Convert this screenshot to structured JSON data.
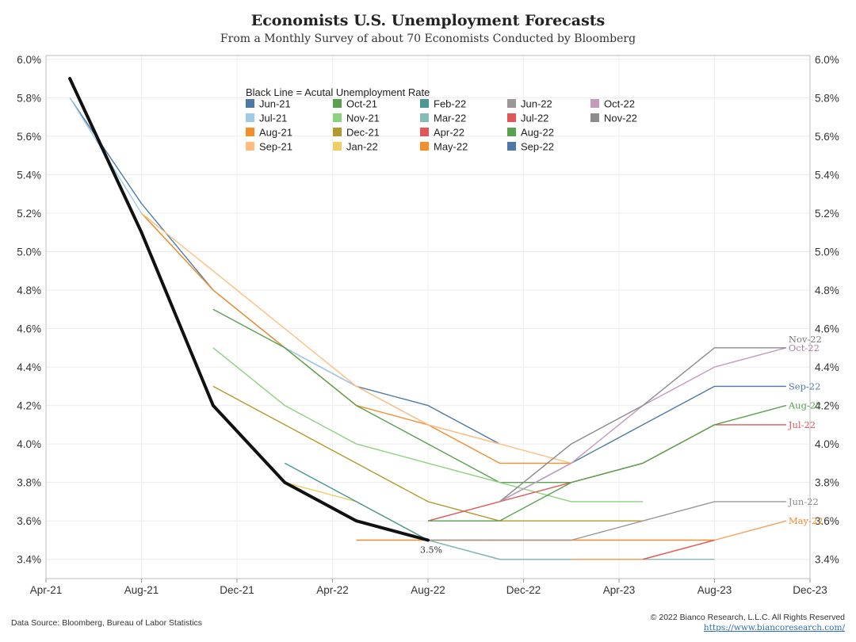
{
  "chart_data": {
    "type": "line",
    "title": "Economists U.S. Unemployment Forecasts",
    "subtitle": "From a Monthly Survey of about 70 Economists Conducted by Bloomberg",
    "legend_title": "Black Line = Acutal Unemployment Rate",
    "legend_position": "top-center",
    "grid": true,
    "x_ticks": [
      "Apr-21",
      "Aug-21",
      "Dec-21",
      "Apr-22",
      "Aug-22",
      "Dec-22",
      "Apr-23",
      "Aug-23",
      "Dec-23"
    ],
    "xlim": [
      "2021-04",
      "2023-12"
    ],
    "y_ticks": [
      "3.4%",
      "3.6%",
      "3.8%",
      "4.0%",
      "4.2%",
      "4.4%",
      "4.6%",
      "4.8%",
      "5.0%",
      "5.2%",
      "5.4%",
      "5.6%",
      "5.8%",
      "6.0%"
    ],
    "ylim": [
      3.3,
      6.02
    ],
    "actual": {
      "color": "#111111",
      "points": [
        [
          "2021-05",
          5.9
        ],
        [
          "2021-08",
          5.1
        ],
        [
          "2021-11",
          4.2
        ],
        [
          "2022-02",
          3.8
        ],
        [
          "2022-05",
          3.6
        ],
        [
          "2022-08",
          3.5
        ]
      ]
    },
    "annotation": "3.5%",
    "series": [
      {
        "name": "Jun-21",
        "color": "#4e79a7",
        "points": [
          [
            "2021-05",
            5.8
          ],
          [
            "2021-08",
            5.25
          ],
          [
            "2021-11",
            4.8
          ],
          [
            "2022-02",
            4.5
          ],
          [
            "2022-05",
            4.3
          ],
          [
            "2022-08",
            4.2
          ],
          [
            "2022-11",
            4.0
          ]
        ]
      },
      {
        "name": "Jul-21",
        "color": "#a0cbe8",
        "points": [
          [
            "2021-05",
            5.8
          ],
          [
            "2021-08",
            5.2
          ],
          [
            "2021-11",
            4.8
          ],
          [
            "2022-02",
            4.5
          ],
          [
            "2022-05",
            4.3
          ],
          [
            "2022-08",
            4.1
          ],
          [
            "2022-11",
            4.0
          ]
        ]
      },
      {
        "name": "Aug-21",
        "color": "#f28e2b",
        "points": [
          [
            "2021-08",
            5.2
          ],
          [
            "2021-11",
            4.8
          ],
          [
            "2022-02",
            4.5
          ],
          [
            "2022-05",
            4.2
          ],
          [
            "2022-08",
            4.1
          ],
          [
            "2022-11",
            3.9
          ],
          [
            "2023-02",
            3.9
          ]
        ]
      },
      {
        "name": "Sep-21",
        "color": "#ffbe7d",
        "points": [
          [
            "2021-08",
            5.2
          ],
          [
            "2021-11",
            4.9
          ],
          [
            "2022-02",
            4.6
          ],
          [
            "2022-05",
            4.3
          ],
          [
            "2022-08",
            4.1
          ],
          [
            "2022-11",
            4.0
          ],
          [
            "2023-02",
            3.9
          ]
        ]
      },
      {
        "name": "Oct-21",
        "color": "#59a14f",
        "points": [
          [
            "2021-11",
            4.7
          ],
          [
            "2022-02",
            4.5
          ],
          [
            "2022-05",
            4.2
          ],
          [
            "2022-08",
            4.0
          ],
          [
            "2022-11",
            3.8
          ],
          [
            "2023-02",
            3.8
          ]
        ]
      },
      {
        "name": "Nov-21",
        "color": "#8cd17d",
        "points": [
          [
            "2021-11",
            4.5
          ],
          [
            "2022-02",
            4.2
          ],
          [
            "2022-05",
            4.0
          ],
          [
            "2022-08",
            3.9
          ],
          [
            "2022-11",
            3.8
          ],
          [
            "2023-02",
            3.7
          ],
          [
            "2023-05",
            3.7
          ]
        ]
      },
      {
        "name": "Dec-21",
        "color": "#b6992d",
        "points": [
          [
            "2021-11",
            4.3
          ],
          [
            "2022-02",
            4.1
          ],
          [
            "2022-05",
            3.9
          ],
          [
            "2022-08",
            3.7
          ],
          [
            "2022-11",
            3.6
          ],
          [
            "2023-02",
            3.6
          ],
          [
            "2023-05",
            3.6
          ]
        ]
      },
      {
        "name": "Jan-22",
        "color": "#f1ce63",
        "points": [
          [
            "2022-02",
            3.8
          ],
          [
            "2022-05",
            3.7
          ],
          [
            "2022-08",
            3.5
          ],
          [
            "2022-11",
            3.5
          ]
        ]
      },
      {
        "name": "Feb-22",
        "color": "#499894",
        "points": [
          [
            "2022-02",
            3.9
          ],
          [
            "2022-05",
            3.7
          ],
          [
            "2022-08",
            3.5
          ],
          [
            "2022-11",
            3.4
          ],
          [
            "2023-02",
            3.4
          ]
        ]
      },
      {
        "name": "Mar-22",
        "color": "#86bcb6",
        "points": [
          [
            "2022-05",
            3.6
          ],
          [
            "2022-08",
            3.5
          ],
          [
            "2022-11",
            3.4
          ],
          [
            "2023-02",
            3.4
          ],
          [
            "2023-05",
            3.4
          ],
          [
            "2023-08",
            3.4
          ]
        ]
      },
      {
        "name": "Apr-22",
        "color": "#e15759",
        "points": [
          [
            "2022-05",
            3.6
          ],
          [
            "2022-08",
            3.5
          ]
        ]
      },
      {
        "name": "May-22",
        "color": "#f28e2b",
        "points": [
          [
            "2022-05",
            3.5
          ],
          [
            "2022-08",
            3.5
          ],
          [
            "2022-11",
            3.5
          ],
          [
            "2023-02",
            3.5
          ],
          [
            "2023-05",
            3.5
          ],
          [
            "2023-08",
            3.5
          ]
        ]
      },
      {
        "name": "Jun-22",
        "color": "#9d9698",
        "points": [
          [
            "2022-08",
            3.5
          ],
          [
            "2022-11",
            3.5
          ],
          [
            "2023-02",
            3.5
          ],
          [
            "2023-05",
            3.6
          ],
          [
            "2023-08",
            3.7
          ],
          [
            "2023-11",
            3.7
          ]
        ]
      },
      {
        "name": "Jul-22",
        "color": "#e15759",
        "points": [
          [
            "2022-08",
            3.6
          ],
          [
            "2022-11",
            3.7
          ],
          [
            "2023-02",
            3.8
          ],
          [
            "2023-05",
            3.9
          ],
          [
            "2023-08",
            4.1
          ],
          [
            "2023-11",
            4.1
          ]
        ]
      },
      {
        "name": "Aug-22",
        "color": "#59a14f",
        "points": [
          [
            "2022-08",
            3.6
          ],
          [
            "2022-11",
            3.6
          ],
          [
            "2023-02",
            3.8
          ],
          [
            "2023-05",
            3.9
          ],
          [
            "2023-08",
            4.1
          ],
          [
            "2023-11",
            4.2
          ]
        ]
      },
      {
        "name": "Sep-22",
        "color": "#4e79a7",
        "points": [
          [
            "2022-11",
            3.7
          ],
          [
            "2023-02",
            3.9
          ],
          [
            "2023-05",
            4.1
          ],
          [
            "2023-08",
            4.3
          ],
          [
            "2023-11",
            4.3
          ]
        ]
      },
      {
        "name": "Oct-22",
        "color": "#c49bbd",
        "points": [
          [
            "2022-11",
            3.7
          ],
          [
            "2023-02",
            3.9
          ],
          [
            "2023-05",
            4.2
          ],
          [
            "2023-08",
            4.4
          ],
          [
            "2023-11",
            4.5
          ]
        ]
      },
      {
        "name": "Nov-22",
        "color": "#8c8c8c",
        "points": [
          [
            "2022-11",
            3.7
          ],
          [
            "2023-02",
            4.0
          ],
          [
            "2023-05",
            4.2
          ],
          [
            "2023-08",
            4.5
          ],
          [
            "2023-11",
            4.5
          ]
        ]
      },
      {
        "name": "May-22 (tail)",
        "color": "#f5a05a",
        "points": [
          [
            "2023-02",
            3.4
          ],
          [
            "2023-05",
            3.4
          ],
          [
            "2023-08",
            3.5
          ],
          [
            "2023-11",
            3.6
          ]
        ]
      },
      {
        "name": "Jul-22 (tail)",
        "color": "#e15759",
        "points": [
          [
            "2023-05",
            3.4
          ],
          [
            "2023-08",
            3.5
          ]
        ]
      }
    ],
    "end_labels": [
      {
        "series": "Nov-22",
        "text": "Nov-22",
        "color": "#7a7a7a"
      },
      {
        "series": "Oct-22",
        "text": "Oct-22",
        "color": "#b07aa1"
      },
      {
        "series": "Sep-22",
        "text": "Sep-22",
        "color": "#4e79a7"
      },
      {
        "series": "Aug-22",
        "text": "Aug-22",
        "color": "#59a14f"
      },
      {
        "series": "Jul-22",
        "text": "Jul-22",
        "color": "#e15759"
      },
      {
        "series": "Jun-22",
        "text": "Jun-22",
        "color": "#8c8c8c"
      },
      {
        "series": "May-22 (tail)",
        "text": "May-22",
        "color": "#f28e2b"
      }
    ],
    "legend_order": [
      "Jun-21",
      "Oct-21",
      "Feb-22",
      "Jun-22",
      "Oct-22",
      "Jul-21",
      "Nov-21",
      "Mar-22",
      "Jul-22",
      "Nov-22",
      "Aug-21",
      "Dec-21",
      "Apr-22",
      "Aug-22",
      "Sep-21",
      "Jan-22",
      "May-22",
      "Sep-22"
    ]
  },
  "footer": {
    "source": "Data Source: Bloomberg, Bureau of Labor Statistics",
    "copyright": "© 2022 Bianco Research, L.L.C. All Rights Reserved",
    "link": "https://www.biancoresearch.com/"
  }
}
